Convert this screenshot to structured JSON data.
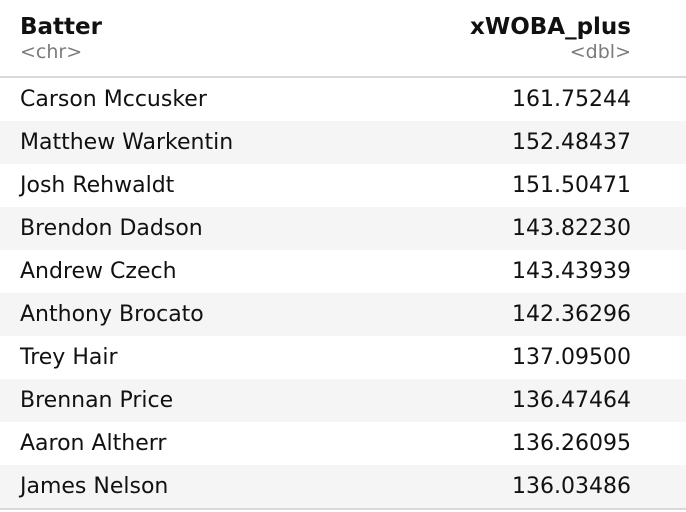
{
  "table": {
    "columns": [
      {
        "name": "Batter",
        "type": "<chr>"
      },
      {
        "name": "xWOBA_plus",
        "type": "<dbl>"
      }
    ],
    "rows": [
      {
        "batter": "Carson Mccusker",
        "xwoba_plus": "161.75244"
      },
      {
        "batter": "Matthew Warkentin",
        "xwoba_plus": "152.48437"
      },
      {
        "batter": "Josh Rehwaldt",
        "xwoba_plus": "151.50471"
      },
      {
        "batter": "Brendon Dadson",
        "xwoba_plus": "143.82230"
      },
      {
        "batter": "Andrew Czech",
        "xwoba_plus": "143.43939"
      },
      {
        "batter": "Anthony Brocato",
        "xwoba_plus": "142.36296"
      },
      {
        "batter": "Trey Hair",
        "xwoba_plus": "137.09500"
      },
      {
        "batter": "Brennan Price",
        "xwoba_plus": "136.47464"
      },
      {
        "batter": "Aaron Altherr",
        "xwoba_plus": "136.26095"
      },
      {
        "batter": "James Nelson",
        "xwoba_plus": "136.03486"
      }
    ]
  }
}
